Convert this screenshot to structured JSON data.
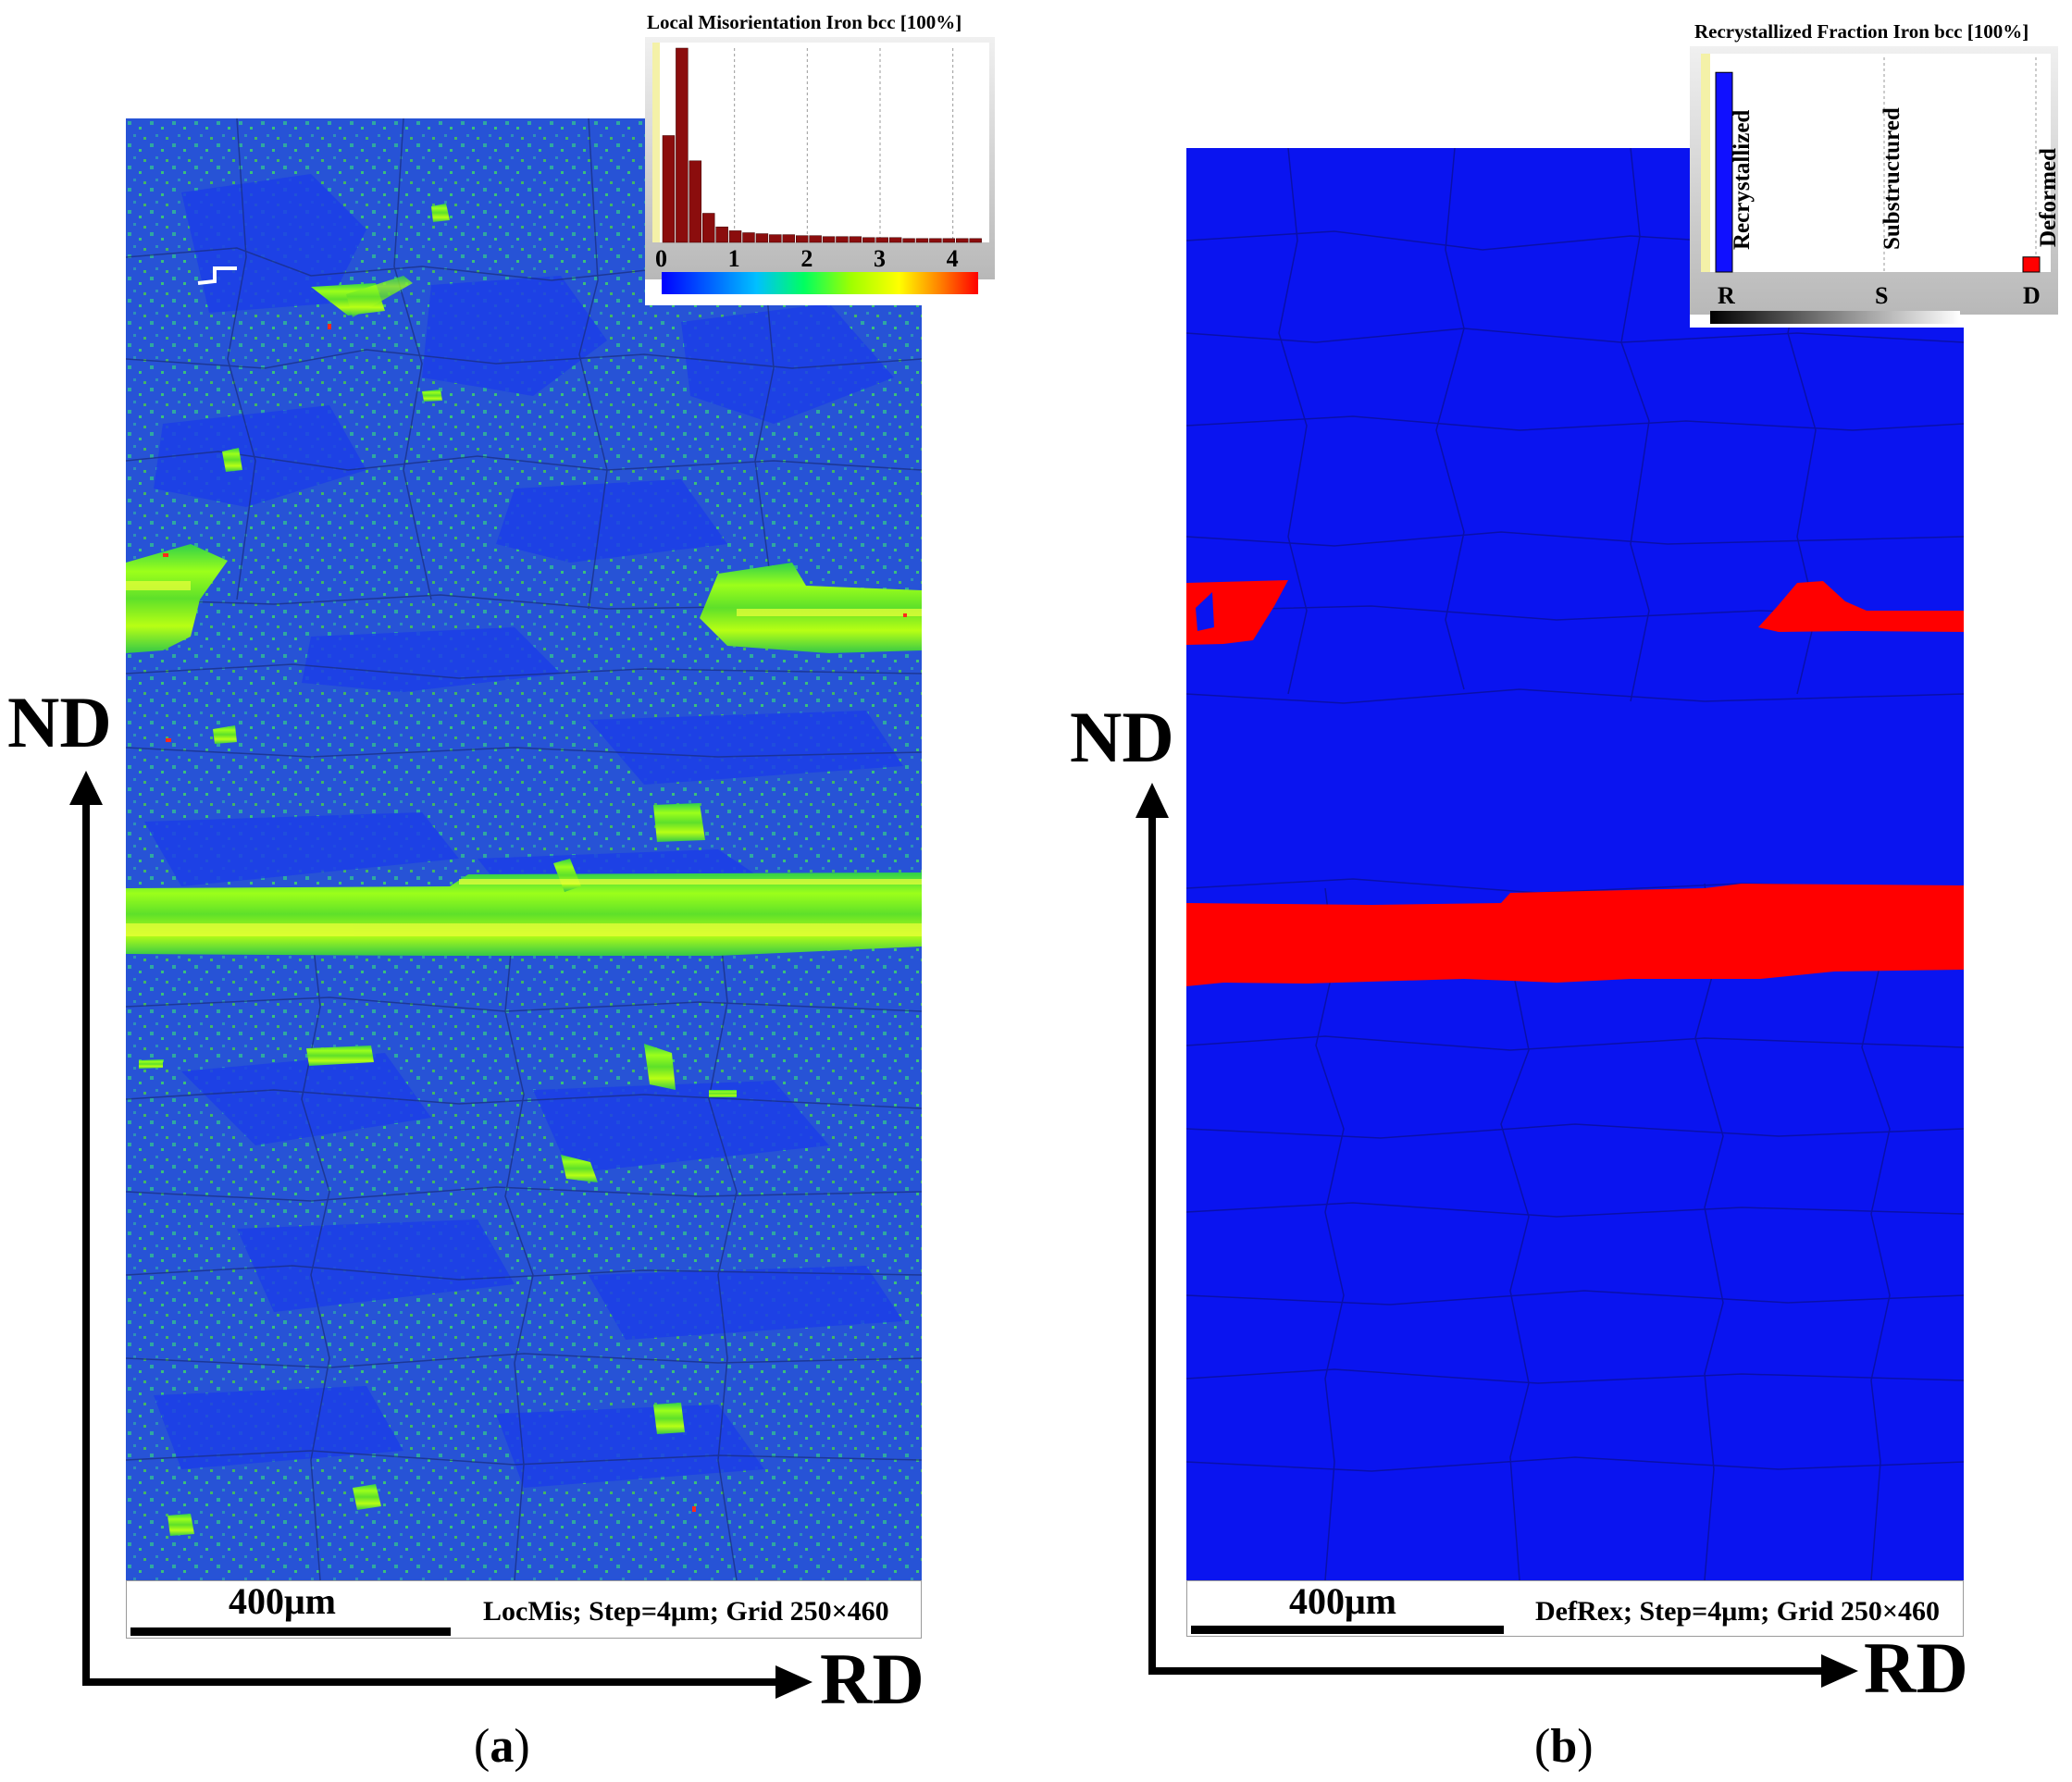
{
  "panel_a": {
    "map_label": "LocMis; Step=4μm; Grid 250×460",
    "scale_bar": "400μm",
    "axis_vertical": "ND",
    "axis_horizontal": "RD",
    "caption_letter": "a",
    "inset": {
      "title": "Local Misorientation Iron bcc [100%]",
      "ticks": [
        "0",
        "1",
        "2",
        "3",
        "4"
      ],
      "histogram": [
        0.55,
        1.0,
        0.42,
        0.15,
        0.08,
        0.06,
        0.05,
        0.045,
        0.04,
        0.04,
        0.035,
        0.035,
        0.03,
        0.03,
        0.03,
        0.025,
        0.025,
        0.025,
        0.02,
        0.02,
        0.02,
        0.02,
        0.02,
        0.02
      ],
      "colors": {
        "bars": "#8b0d0d",
        "gradient": [
          "#0000ff",
          "#00c0ff",
          "#00ff60",
          "#a0ff00",
          "#ffff00",
          "#ff8000",
          "#ff0000"
        ]
      }
    }
  },
  "panel_b": {
    "map_label": "DefRex; Step=4μm; Grid 250×460",
    "scale_bar": "400μm",
    "axis_vertical": "ND",
    "axis_horizontal": "RD",
    "caption_letter": "b",
    "inset": {
      "title": "Recrystallized Fraction Iron bcc [100%]",
      "categories": [
        "Recrystallized",
        "Substructured",
        "Deformed"
      ],
      "ticks": [
        "R",
        "S",
        "D"
      ],
      "fractions": {
        "Recrystallized": 0.93,
        "Substructured": 0.0,
        "Deformed": 0.07
      },
      "colors": {
        "Recrystallized": "#1010ff",
        "Substructured": "#ffff00",
        "Deformed": "#ff0000"
      }
    }
  },
  "colors": {
    "recrystallized_blue": "#0a14f0",
    "deformed_red": "#ff0000",
    "locmis_background": "#2a5ad8",
    "band_green": "#7dff10"
  }
}
